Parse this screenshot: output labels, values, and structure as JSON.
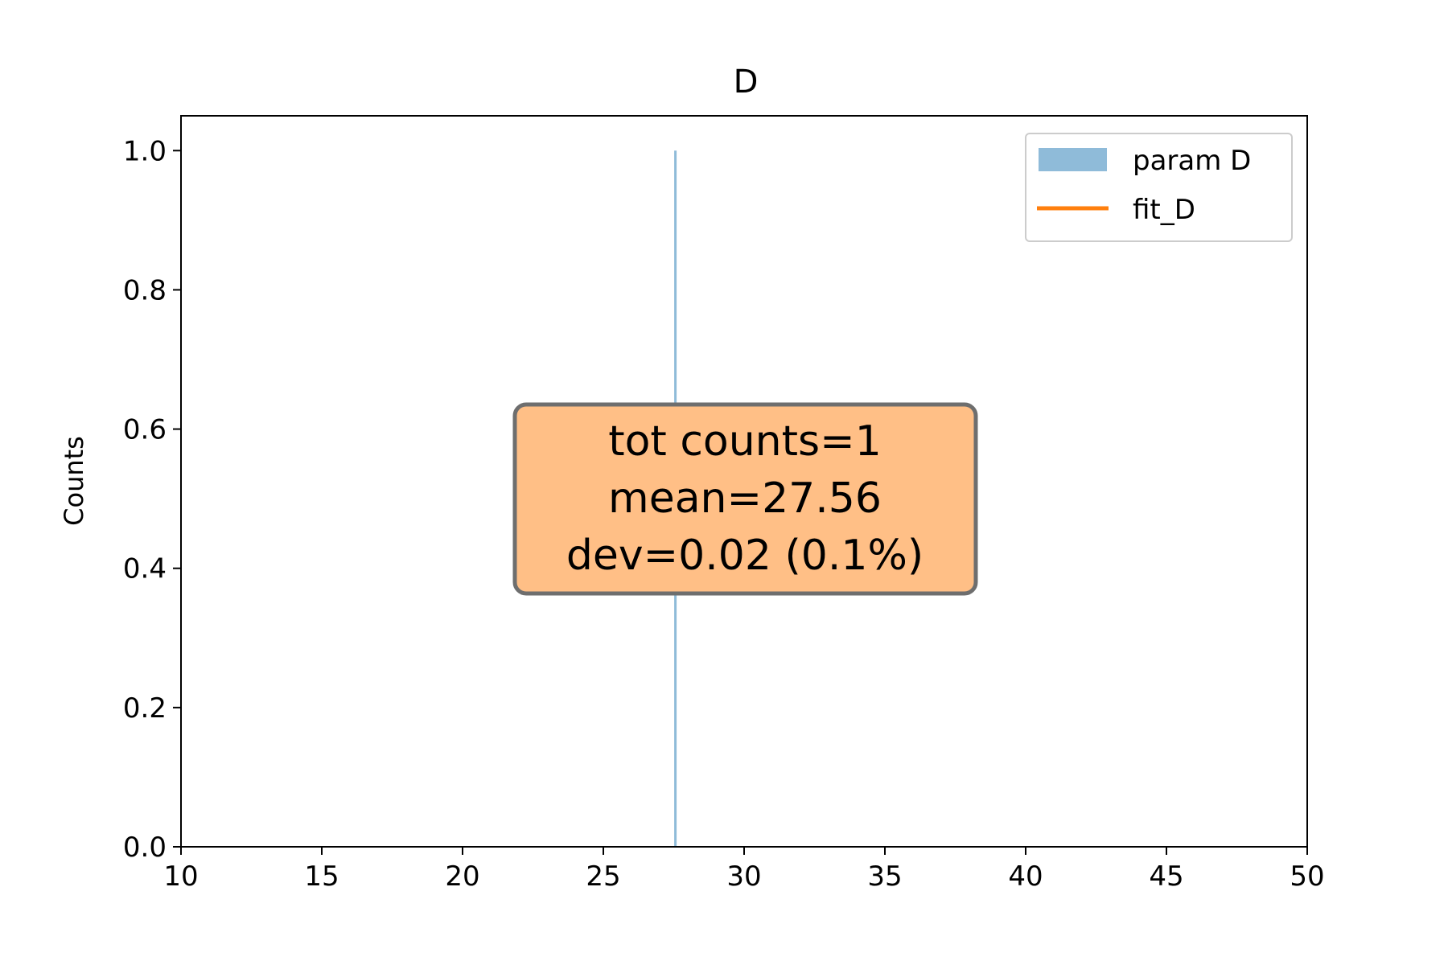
{
  "chart_data": {
    "type": "bar",
    "title": "D",
    "xlabel": "",
    "ylabel": "Counts",
    "xlim": [
      10,
      50
    ],
    "ylim": [
      0,
      1.05
    ],
    "xticks": [
      10,
      15,
      20,
      25,
      30,
      35,
      40,
      45,
      50
    ],
    "xtick_labels": [
      "10",
      "15",
      "20",
      "25",
      "30",
      "35",
      "40",
      "45",
      "50"
    ],
    "yticks": [
      0.0,
      0.2,
      0.4,
      0.6,
      0.8,
      1.0
    ],
    "ytick_labels": [
      "0.0",
      "0.2",
      "0.4",
      "0.6",
      "0.8",
      "1.0"
    ],
    "series": [
      {
        "name": "param D",
        "kind": "histogram",
        "color": "#1f77b4",
        "bins": [
          {
            "x": 27.56,
            "count": 1
          }
        ]
      },
      {
        "name": "fit_D",
        "kind": "line",
        "color": "#ff7f0e",
        "points": []
      }
    ],
    "legend": {
      "position": "top-right"
    },
    "annotation": {
      "lines": [
        "tot counts=1",
        "mean=27.56",
        "dev=0.02 (0.1%)"
      ],
      "background": "#ffbf86",
      "border": "#6e6e6e"
    },
    "grid": false
  }
}
